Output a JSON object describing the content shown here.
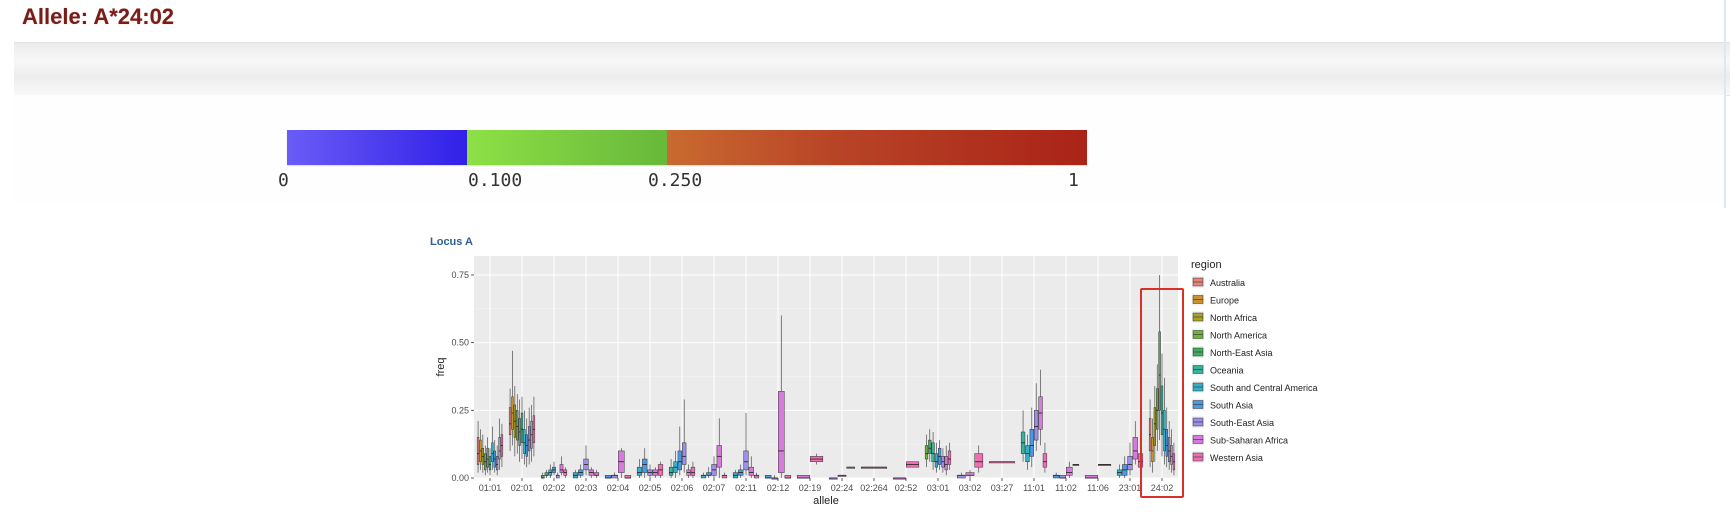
{
  "page": {
    "title": "Allele: A*24:02"
  },
  "color_scale": {
    "ticks": [
      "0",
      "0.100",
      "0.250",
      "1"
    ],
    "colors": {
      "low": "#3a2bed",
      "mid": "#7fcf40",
      "high": "#b02a1b"
    }
  },
  "plot": {
    "title": "Locus A",
    "highlight_color": "#d9302a"
  },
  "chart_data": {
    "type": "boxplot",
    "title": "Locus A",
    "xlabel": "allele",
    "ylabel": "freq",
    "ylim": [
      0,
      0.82
    ],
    "yticks": [
      "0.00",
      "0.25",
      "0.50",
      "0.75"
    ],
    "grid": true,
    "legend": {
      "title": "region",
      "placement": "right",
      "items": [
        {
          "name": "Australia",
          "color": "#e5837a"
        },
        {
          "name": "Europe",
          "color": "#c9922c"
        },
        {
          "name": "North Africa",
          "color": "#a7a22a"
        },
        {
          "name": "North America",
          "color": "#6fb23b"
        },
        {
          "name": "North-East Asia",
          "color": "#3fad5f"
        },
        {
          "name": "Oceania",
          "color": "#36b39a"
        },
        {
          "name": "South and Central America",
          "color": "#36b0c7"
        },
        {
          "name": "South Asia",
          "color": "#4a9ae3"
        },
        {
          "name": "South-East Asia",
          "color": "#9c8ee9"
        },
        {
          "name": "Sub-Saharan Africa",
          "color": "#d779dd"
        },
        {
          "name": "Western Asia",
          "color": "#ec6fb0"
        }
      ]
    },
    "categories": [
      "01:01",
      "02:01",
      "02:02",
      "02:03",
      "02:04",
      "02:05",
      "02:06",
      "02:07",
      "02:11",
      "02:12",
      "02:19",
      "02:24",
      "02:264",
      "02:52",
      "03:01",
      "03:02",
      "03:27",
      "11:01",
      "11:02",
      "11:06",
      "23:01",
      "24:02"
    ],
    "highlighted_category": "24:02",
    "series": [
      {
        "category": "01:01",
        "boxes": [
          [
            0.02,
            0.05,
            0.09,
            0.15,
            0.21
          ],
          [
            0.03,
            0.06,
            0.1,
            0.14,
            0.18
          ],
          [
            0.02,
            0.05,
            0.08,
            0.11,
            0.16
          ],
          [
            0.01,
            0.03,
            0.06,
            0.09,
            0.12
          ],
          [
            0.02,
            0.04,
            0.07,
            0.11,
            0.15
          ],
          [
            0.01,
            0.03,
            0.05,
            0.08,
            0.11
          ],
          [
            0.03,
            0.06,
            0.09,
            0.13,
            0.19
          ],
          [
            0.02,
            0.04,
            0.07,
            0.1,
            0.14
          ],
          [
            0.01,
            0.03,
            0.05,
            0.08,
            0.12
          ],
          [
            0.03,
            0.07,
            0.1,
            0.15,
            0.22
          ],
          [
            0.04,
            0.08,
            0.12,
            0.16,
            0.2
          ]
        ]
      },
      {
        "category": "02:01",
        "boxes": [
          [
            0.1,
            0.16,
            0.2,
            0.26,
            0.33
          ],
          [
            0.12,
            0.18,
            0.24,
            0.3,
            0.47
          ],
          [
            0.08,
            0.15,
            0.21,
            0.27,
            0.34
          ],
          [
            0.09,
            0.14,
            0.19,
            0.25,
            0.31
          ],
          [
            0.06,
            0.12,
            0.17,
            0.22,
            0.29
          ],
          [
            0.07,
            0.13,
            0.18,
            0.24,
            0.3
          ],
          [
            0.05,
            0.09,
            0.13,
            0.18,
            0.25
          ],
          [
            0.04,
            0.08,
            0.12,
            0.16,
            0.22
          ],
          [
            0.05,
            0.1,
            0.14,
            0.19,
            0.26
          ],
          [
            0.06,
            0.11,
            0.16,
            0.21,
            0.27
          ],
          [
            0.08,
            0.13,
            0.18,
            0.23,
            0.3
          ]
        ]
      },
      {
        "category": "02:02",
        "boxes": [
          [
            0.0,
            0.0,
            0.0,
            0.01,
            0.02
          ],
          [
            0.0,
            0.01,
            0.01,
            0.02,
            0.03
          ],
          [
            0.0,
            0.01,
            0.02,
            0.03,
            0.05
          ],
          [
            0.01,
            0.02,
            0.03,
            0.04,
            0.06
          ],
          [
            0.0,
            0.0,
            0.01,
            0.01,
            0.02
          ],
          [
            0.01,
            0.02,
            0.03,
            0.05,
            0.08
          ],
          [
            0.0,
            0.01,
            0.02,
            0.03,
            0.04
          ]
        ]
      },
      {
        "category": "02:03",
        "boxes": [
          [
            0.0,
            0.0,
            0.01,
            0.02,
            0.03
          ],
          [
            0.0,
            0.01,
            0.02,
            0.03,
            0.05
          ],
          [
            0.01,
            0.03,
            0.05,
            0.07,
            0.12
          ],
          [
            0.0,
            0.01,
            0.02,
            0.03,
            0.04
          ],
          [
            0.0,
            0.01,
            0.01,
            0.02,
            0.03
          ]
        ]
      },
      {
        "category": "02:04",
        "boxes": [
          [
            0.0,
            0.0,
            0.0,
            0.01,
            0.01
          ],
          [
            0.0,
            0.0,
            0.01,
            0.01,
            0.02
          ],
          [
            0.0,
            0.02,
            0.06,
            0.1,
            0.11
          ],
          [
            0.0,
            0.0,
            0.0,
            0.01,
            0.01
          ]
        ]
      },
      {
        "category": "02:05",
        "boxes": [
          [
            0.0,
            0.01,
            0.02,
            0.04,
            0.07
          ],
          [
            0.0,
            0.02,
            0.05,
            0.07,
            0.11
          ],
          [
            0.0,
            0.01,
            0.02,
            0.03,
            0.05
          ],
          [
            0.0,
            0.01,
            0.02,
            0.03,
            0.04
          ],
          [
            0.0,
            0.01,
            0.03,
            0.05,
            0.06
          ]
        ]
      },
      {
        "category": "02:06",
        "boxes": [
          [
            0.0,
            0.01,
            0.02,
            0.04,
            0.07
          ],
          [
            0.0,
            0.02,
            0.04,
            0.06,
            0.1
          ],
          [
            0.01,
            0.03,
            0.06,
            0.1,
            0.19
          ],
          [
            0.02,
            0.05,
            0.08,
            0.13,
            0.29
          ],
          [
            0.0,
            0.01,
            0.02,
            0.03,
            0.05
          ],
          [
            0.0,
            0.01,
            0.02,
            0.04,
            0.06
          ]
        ]
      },
      {
        "category": "02:07",
        "boxes": [
          [
            0.0,
            0.0,
            0.01,
            0.01,
            0.02
          ],
          [
            0.0,
            0.01,
            0.01,
            0.02,
            0.04
          ],
          [
            0.0,
            0.01,
            0.03,
            0.05,
            0.08
          ],
          [
            0.0,
            0.04,
            0.08,
            0.12,
            0.22
          ],
          [
            0.0,
            0.0,
            0.01,
            0.01,
            0.02
          ]
        ]
      },
      {
        "category": "02:11",
        "boxes": [
          [
            0.0,
            0.0,
            0.01,
            0.02,
            0.03
          ],
          [
            0.0,
            0.01,
            0.02,
            0.03,
            0.05
          ],
          [
            0.01,
            0.03,
            0.06,
            0.1,
            0.24
          ],
          [
            0.0,
            0.01,
            0.02,
            0.04,
            0.08
          ],
          [
            0.0,
            0.0,
            0.01,
            0.01,
            0.02
          ]
        ]
      },
      {
        "category": "02:12",
        "boxes": [
          [
            0.0,
            0.0,
            0.0,
            0.01,
            0.01
          ],
          [
            0.0,
            0.0,
            0.0,
            0.0,
            0.01
          ],
          [
            0.0,
            0.02,
            0.1,
            0.32,
            0.6
          ],
          [
            0.0,
            0.0,
            0.0,
            0.01,
            0.01
          ]
        ]
      },
      {
        "category": "02:19",
        "boxes": [
          [
            0.0,
            0.0,
            0.0,
            0.01,
            0.01
          ],
          [
            0.05,
            0.06,
            0.07,
            0.08,
            0.09
          ]
        ]
      },
      {
        "category": "02:24",
        "boxes": [
          [
            0.0,
            0.0,
            0.0,
            0.0,
            0.0
          ],
          [
            0.01,
            0.01,
            0.01,
            0.01,
            0.01
          ],
          [
            0.04,
            0.04,
            0.04,
            0.04,
            0.04
          ]
        ]
      },
      {
        "category": "02:264",
        "boxes": [
          [
            0.04,
            0.04,
            0.04,
            0.04,
            0.04
          ]
        ]
      },
      {
        "category": "02:52",
        "boxes": [
          [
            0.0,
            0.0,
            0.0,
            0.0,
            0.0
          ],
          [
            0.04,
            0.04,
            0.05,
            0.06,
            0.06
          ]
        ]
      },
      {
        "category": "03:01",
        "boxes": [
          [
            0.04,
            0.07,
            0.09,
            0.12,
            0.16
          ],
          [
            0.06,
            0.09,
            0.11,
            0.14,
            0.18
          ],
          [
            0.03,
            0.06,
            0.09,
            0.13,
            0.17
          ],
          [
            0.02,
            0.04,
            0.06,
            0.09,
            0.13
          ],
          [
            0.03,
            0.05,
            0.08,
            0.11,
            0.14
          ],
          [
            0.02,
            0.04,
            0.06,
            0.08,
            0.11
          ],
          [
            0.01,
            0.03,
            0.05,
            0.08,
            0.12
          ],
          [
            0.03,
            0.05,
            0.07,
            0.1,
            0.13
          ]
        ]
      },
      {
        "category": "03:02",
        "boxes": [
          [
            0.0,
            0.0,
            0.01,
            0.01,
            0.02
          ],
          [
            0.0,
            0.01,
            0.01,
            0.02,
            0.03
          ],
          [
            0.02,
            0.04,
            0.06,
            0.09,
            0.12
          ]
        ]
      },
      {
        "category": "03:27",
        "boxes": [
          [
            0.06,
            0.06,
            0.06,
            0.06,
            0.06
          ]
        ]
      },
      {
        "category": "11:01",
        "boxes": [
          [
            0.06,
            0.09,
            0.13,
            0.17,
            0.25
          ],
          [
            0.03,
            0.06,
            0.09,
            0.12,
            0.16
          ],
          [
            0.04,
            0.08,
            0.12,
            0.18,
            0.26
          ],
          [
            0.1,
            0.14,
            0.19,
            0.25,
            0.35
          ],
          [
            0.12,
            0.18,
            0.24,
            0.3,
            0.4
          ],
          [
            0.02,
            0.04,
            0.06,
            0.09,
            0.13
          ]
        ]
      },
      {
        "category": "11:02",
        "boxes": [
          [
            0.0,
            0.0,
            0.01,
            0.01,
            0.02
          ],
          [
            0.0,
            0.0,
            0.0,
            0.01,
            0.01
          ],
          [
            0.0,
            0.01,
            0.02,
            0.04,
            0.06
          ],
          [
            0.05,
            0.05,
            0.05,
            0.05,
            0.05
          ]
        ]
      },
      {
        "category": "11:06",
        "boxes": [
          [
            0.0,
            0.0,
            0.0,
            0.01,
            0.01
          ],
          [
            0.05,
            0.05,
            0.05,
            0.05,
            0.05
          ]
        ]
      },
      {
        "category": "23:01",
        "boxes": [
          [
            0.0,
            0.01,
            0.02,
            0.03,
            0.05
          ],
          [
            0.0,
            0.01,
            0.03,
            0.05,
            0.08
          ],
          [
            0.01,
            0.03,
            0.05,
            0.08,
            0.13
          ],
          [
            0.05,
            0.07,
            0.1,
            0.15,
            0.21
          ],
          [
            0.02,
            0.04,
            0.06,
            0.09,
            0.12
          ]
        ]
      },
      {
        "category": "24:02",
        "boxes": [
          [
            0.04,
            0.1,
            0.16,
            0.22,
            0.29
          ],
          [
            0.02,
            0.06,
            0.1,
            0.15,
            0.22
          ],
          [
            0.06,
            0.12,
            0.2,
            0.26,
            0.34
          ],
          [
            0.1,
            0.18,
            0.25,
            0.33,
            0.42
          ],
          [
            0.14,
            0.25,
            0.38,
            0.54,
            0.75
          ],
          [
            0.08,
            0.16,
            0.24,
            0.34,
            0.46
          ],
          [
            0.05,
            0.1,
            0.18,
            0.25,
            0.37
          ],
          [
            0.04,
            0.08,
            0.12,
            0.18,
            0.26
          ],
          [
            0.03,
            0.06,
            0.1,
            0.15,
            0.21
          ],
          [
            0.02,
            0.05,
            0.08,
            0.12,
            0.18
          ],
          [
            0.01,
            0.03,
            0.06,
            0.09,
            0.13
          ]
        ]
      }
    ]
  }
}
